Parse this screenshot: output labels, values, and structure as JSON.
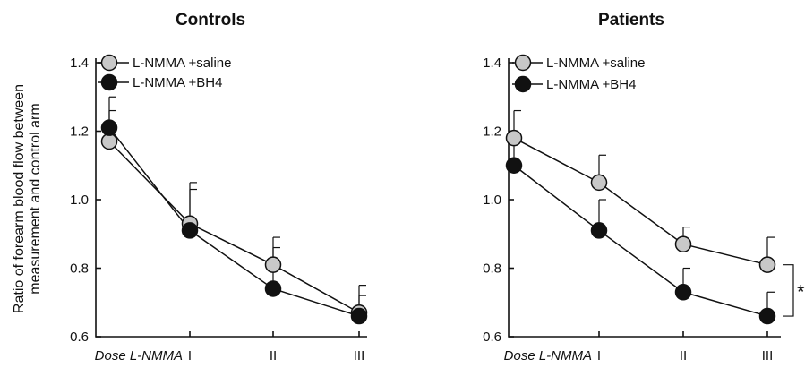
{
  "ylabel_line1": "Ratio of forearm blood flow between",
  "ylabel_line2": "measurement and control arm",
  "colors": {
    "saline_fill": "#c8c8c8",
    "bh4_fill": "#111111",
    "ink": "#111111"
  },
  "chart_data": [
    {
      "type": "line",
      "title": "Controls",
      "x_label_prefix": "Dose L-NMMA",
      "categories": [
        "I",
        "II",
        "III"
      ],
      "x": [
        0,
        1,
        2,
        3
      ],
      "ylim": [
        0.6,
        1.4
      ],
      "yticks": [
        "0.6",
        "0.8",
        "1.0",
        "1.2",
        "1.4"
      ],
      "grid": false,
      "legend": "top-left",
      "series": [
        {
          "name": "L-NMMA +saline",
          "marker": "grey-circle",
          "values": [
            1.17,
            0.93,
            0.81,
            0.67
          ],
          "errors": [
            0.09,
            0.12,
            0.08,
            0.08
          ]
        },
        {
          "name": "L-NMMA +BH4",
          "marker": "black-circle",
          "values": [
            1.21,
            0.91,
            0.74,
            0.66
          ],
          "errors": [
            0.09,
            0.12,
            0.12,
            0.06
          ]
        }
      ]
    },
    {
      "type": "line",
      "title": "Patients",
      "x_label_prefix": "Dose L-NMMA",
      "categories": [
        "I",
        "II",
        "III"
      ],
      "x": [
        0,
        1,
        2,
        3
      ],
      "ylim": [
        0.6,
        1.4
      ],
      "yticks": [
        "0.6",
        "0.8",
        "1.0",
        "1.2",
        "1.4"
      ],
      "grid": false,
      "legend": "top-left",
      "significance": "*",
      "series": [
        {
          "name": "L-NMMA +saline",
          "marker": "grey-circle",
          "values": [
            1.18,
            1.05,
            0.87,
            0.81
          ],
          "errors": [
            0.08,
            0.08,
            0.05,
            0.08
          ]
        },
        {
          "name": "L-NMMA +BH4",
          "marker": "black-circle",
          "values": [
            1.1,
            0.91,
            0.73,
            0.66
          ],
          "errors": [
            0.07,
            0.09,
            0.07,
            0.07
          ]
        }
      ]
    }
  ]
}
